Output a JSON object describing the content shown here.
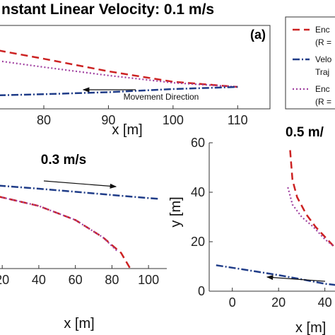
{
  "colors": {
    "encoder": "#cc2222",
    "velocity": "#1f3c88",
    "encoder2": "#a040a0",
    "axis": "#333333",
    "arrow": "#111111"
  },
  "legend": {
    "items": [
      {
        "line1": "Enc",
        "line2": "(R =",
        "style": "encoder"
      },
      {
        "line1": "Velo",
        "line2": "Traj",
        "style": "velocity"
      },
      {
        "line1": "Enc",
        "line2": "(R =",
        "style": "encoder2"
      }
    ]
  },
  "chart_data": [
    {
      "panel": "a",
      "type": "line",
      "title": "nstant Linear Velocity: 0.1 m/s",
      "panel_label": "(a)",
      "xlabel": "x [m]",
      "ylabel": "",
      "xlim": [
        73,
        115
      ],
      "ylim": [
        -10,
        30
      ],
      "xticks": [
        80,
        90,
        100,
        110
      ],
      "annotation": "Movement Direction",
      "series": [
        {
          "style": "encoder",
          "x": [
            73,
            80,
            90,
            100,
            110
          ],
          "y": [
            18,
            14,
            8,
            3,
            0.5
          ]
        },
        {
          "style": "encoder2",
          "x": [
            73,
            80,
            90,
            100,
            110
          ],
          "y": [
            13,
            10,
            6,
            2.5,
            0.5
          ]
        },
        {
          "style": "velocity",
          "x": [
            73,
            80,
            90,
            100,
            110
          ],
          "y": [
            -3.5,
            -3,
            -2,
            -0.5,
            0.5
          ]
        }
      ]
    },
    {
      "panel": "b",
      "type": "line",
      "title": "0.3 m/s",
      "xlabel": "x [m]",
      "ylabel": "",
      "xlim": [
        18,
        110
      ],
      "ylim": [
        -5,
        60
      ],
      "xticks": [
        20,
        40,
        60,
        80,
        100
      ],
      "series": [
        {
          "style": "encoder",
          "x": [
            18,
            40,
            60,
            75,
            85,
            90
          ],
          "y": [
            41,
            35,
            26,
            15,
            5,
            -5
          ]
        },
        {
          "style": "encoder2",
          "x": [
            18,
            40,
            60,
            75,
            83
          ],
          "y": [
            41,
            35,
            26,
            15,
            6
          ]
        },
        {
          "style": "velocity",
          "x": [
            18,
            40,
            60,
            80,
            100,
            106
          ],
          "y": [
            48,
            46,
            44,
            42,
            40,
            39.5
          ]
        }
      ]
    },
    {
      "panel": "c",
      "type": "line",
      "title": "0.5 m/",
      "xlabel": "x [m]",
      "ylabel": "y [m]",
      "xlim": [
        -10,
        45
      ],
      "ylim": [
        0,
        60
      ],
      "yticks": [
        0,
        20,
        40,
        60
      ],
      "xticks": [
        0,
        20,
        40
      ],
      "series": [
        {
          "style": "encoder",
          "x": [
            25,
            26,
            28,
            32,
            36,
            40,
            44
          ],
          "y": [
            57,
            45,
            38,
            31,
            26,
            22,
            18
          ]
        },
        {
          "style": "encoder2",
          "x": [
            24,
            26,
            30,
            35,
            40,
            44
          ],
          "y": [
            42,
            35,
            30,
            26,
            21,
            18
          ]
        },
        {
          "style": "velocity",
          "x": [
            -7,
            0,
            10,
            20,
            30,
            40,
            45
          ],
          "y": [
            10.5,
            9.5,
            8,
            6.5,
            4.8,
            3,
            2.5
          ]
        }
      ]
    }
  ]
}
